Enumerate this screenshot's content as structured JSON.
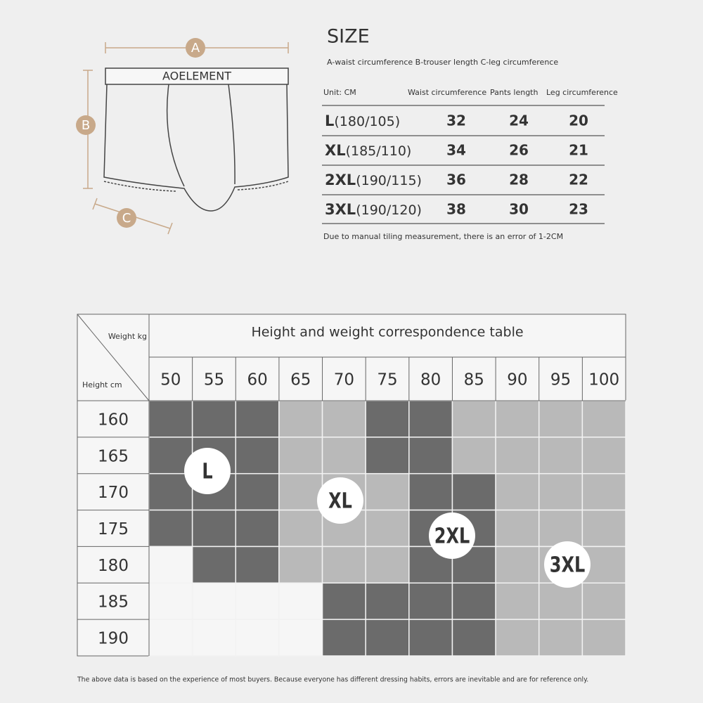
{
  "diagram": {
    "labels": [
      "A",
      "B",
      "C"
    ],
    "brand": "AOELEMENT"
  },
  "size_table": {
    "title": "SIZE",
    "subtitle": "A-waist circumference B-trouser length C-leg circumference",
    "header": [
      "Unit: CM",
      "Waist circumference",
      "Pants length",
      "Leg circumference"
    ],
    "rows": [
      {
        "size": "L",
        "range": "(180/105)",
        "values": [
          32,
          24,
          20
        ]
      },
      {
        "size": "XL",
        "range": "(185/110)",
        "values": [
          34,
          26,
          21
        ]
      },
      {
        "size": "2XL",
        "range": "(190/115)",
        "values": [
          36,
          28,
          22
        ]
      },
      {
        "size": "3XL",
        "range": "(190/120)",
        "values": [
          38,
          30,
          23
        ]
      }
    ],
    "note": "Due to manual tiling measurement, there is an error of 1-2CM"
  },
  "correspondence_table": {
    "title": "Height and weight correspondence table",
    "weight_label": "Weight kg",
    "height_label": "Height cm",
    "weights": [
      50,
      55,
      60,
      65,
      70,
      75,
      80,
      85,
      90,
      95,
      100
    ],
    "heights": [
      160,
      165,
      170,
      175,
      180,
      185,
      190
    ],
    "regions": [
      "L",
      "XL",
      "2XL",
      "3XL"
    ]
  },
  "footer": "The above data is based on the experience of most buyers. Because everyone has different dressing habits, errors are inevitable and are for reference only."
}
